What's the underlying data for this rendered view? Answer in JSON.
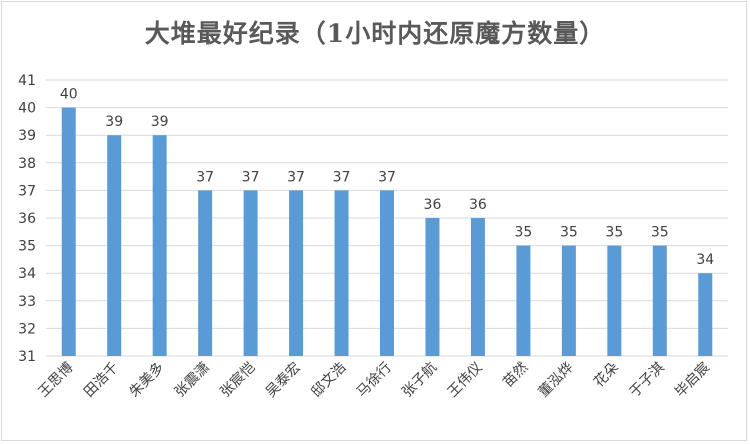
{
  "chart_data": {
    "type": "bar",
    "title": "大堆最好纪录（1小时内还原魔方数量）",
    "categories": [
      "王思博",
      "田浩千",
      "朱美多",
      "张震潇",
      "张宸恺",
      "吴泰宏",
      "邸文浩",
      "马徐行",
      "张子航",
      "王伟仪",
      "苗然",
      "董泓烨",
      "花朵",
      "于子淇",
      "毕启宸"
    ],
    "values": [
      40,
      39,
      39,
      37,
      37,
      37,
      37,
      37,
      36,
      36,
      35,
      35,
      35,
      35,
      34
    ],
    "ylim": [
      31,
      41
    ],
    "yticks": [
      31,
      32,
      33,
      34,
      35,
      36,
      37,
      38,
      39,
      40,
      41
    ],
    "xlabel": "",
    "ylabel": "",
    "grid": true,
    "bar_color": "#5b9bd5",
    "grid_color": "#d9d9d9"
  }
}
